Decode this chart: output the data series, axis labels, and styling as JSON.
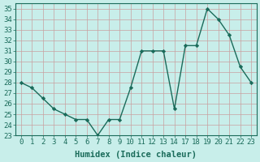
{
  "x_labels": [
    0,
    1,
    2,
    3,
    4,
    5,
    6,
    7,
    8,
    9,
    10,
    11,
    12,
    13,
    14,
    17,
    18,
    19,
    20,
    21,
    22,
    23
  ],
  "y": [
    28,
    27.5,
    26.5,
    25.5,
    25,
    24.5,
    24.5,
    23,
    24.5,
    24.5,
    27.5,
    31,
    31,
    31,
    25.5,
    31.5,
    31.5,
    35,
    34,
    32.5,
    29.5,
    28
  ],
  "line_color": "#1a6b5a",
  "marker_color": "#1a6b5a",
  "bg_color": "#c8eeea",
  "grid_color": "#d0e8e4",
  "xlabel": "Humidex (Indice chaleur)",
  "ylim": [
    23,
    35.5
  ],
  "yticks": [
    23,
    24,
    25,
    26,
    27,
    28,
    29,
    30,
    31,
    32,
    33,
    34,
    35
  ],
  "tick_label_fontsize": 6.5,
  "xlabel_fontsize": 7.5
}
